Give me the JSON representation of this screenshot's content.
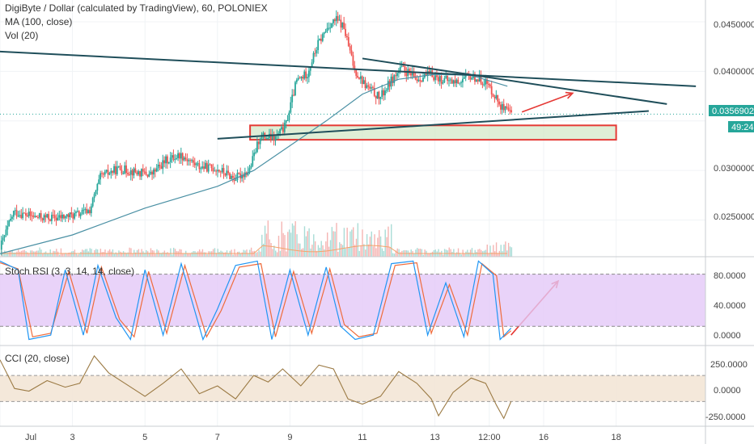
{
  "header": {
    "title": "DigiByte / Dollar (calculated by TradingView), 60, POLONIEX",
    "ma_label": "MA (100, close)",
    "vol_label": "Vol (20)"
  },
  "price_axis": {
    "ticks": [
      "0.04500000",
      "0.04000000",
      "0.03000000",
      "0.02500000"
    ],
    "last_price": "0.03569025",
    "countdown": "49:24"
  },
  "stoch": {
    "label": "Stoch RSI (3, 3, 14, 14, close)",
    "ticks": [
      "80.0000",
      "40.0000",
      "0.0000"
    ]
  },
  "cci": {
    "label": "CCI (20, close)",
    "ticks": [
      "250.0000",
      "0.0000",
      "-250.0000"
    ]
  },
  "time_axis": [
    "Jul",
    "3",
    "5",
    "7",
    "9",
    "11",
    "13",
    "12:00",
    "16",
    "18"
  ],
  "colors": {
    "up": "#26a69a",
    "down": "#ef5350",
    "ma": "#4a90a4",
    "stoch_k": "#2196f3",
    "stoch_d": "#ef6c3c",
    "stoch_band": "#e3c8f7",
    "cci_line": "#9b7a44",
    "cci_band": "#f3e6d6",
    "trendline": "#1f4e5a",
    "zone_fill": "#d4e8c8",
    "zone_border": "#e53935",
    "arrow": "#e53935",
    "price_tag": "#26a69a"
  },
  "chart_data": {
    "type": "candlestick",
    "symbol": "DigiByte / Dollar",
    "interval": "60",
    "exchange": "POLONIEX",
    "price_range": [
      0.0213,
      0.0472
    ],
    "trend": [
      {
        "day": 0.0,
        "price": 0.022
      },
      {
        "day": 0.4,
        "price": 0.0258
      },
      {
        "day": 1.0,
        "price": 0.0253
      },
      {
        "day": 1.6,
        "price": 0.0252
      },
      {
        "day": 2.2,
        "price": 0.0256
      },
      {
        "day": 2.5,
        "price": 0.026
      },
      {
        "day": 2.8,
        "price": 0.0294
      },
      {
        "day": 3.3,
        "price": 0.0302
      },
      {
        "day": 3.8,
        "price": 0.0298
      },
      {
        "day": 4.2,
        "price": 0.0296
      },
      {
        "day": 4.6,
        "price": 0.031
      },
      {
        "day": 5.0,
        "price": 0.0316
      },
      {
        "day": 5.5,
        "price": 0.0304
      },
      {
        "day": 6.0,
        "price": 0.0302
      },
      {
        "day": 6.5,
        "price": 0.0292
      },
      {
        "day": 6.9,
        "price": 0.03
      },
      {
        "day": 7.2,
        "price": 0.0335
      },
      {
        "day": 7.6,
        "price": 0.0332
      },
      {
        "day": 7.9,
        "price": 0.0345
      },
      {
        "day": 8.2,
        "price": 0.039
      },
      {
        "day": 8.5,
        "price": 0.0398
      },
      {
        "day": 8.8,
        "price": 0.0428
      },
      {
        "day": 9.1,
        "price": 0.0447
      },
      {
        "day": 9.3,
        "price": 0.0452
      },
      {
        "day": 9.5,
        "price": 0.0445
      },
      {
        "day": 9.8,
        "price": 0.0402
      },
      {
        "day": 10.1,
        "price": 0.0386
      },
      {
        "day": 10.5,
        "price": 0.0373
      },
      {
        "day": 10.8,
        "price": 0.039
      },
      {
        "day": 11.1,
        "price": 0.0403
      },
      {
        "day": 11.5,
        "price": 0.0392
      },
      {
        "day": 11.9,
        "price": 0.0397
      },
      {
        "day": 12.2,
        "price": 0.0392
      },
      {
        "day": 12.6,
        "price": 0.0389
      },
      {
        "day": 13.0,
        "price": 0.0395
      },
      {
        "day": 13.4,
        "price": 0.039
      },
      {
        "day": 13.6,
        "price": 0.038
      },
      {
        "day": 13.9,
        "price": 0.0362
      },
      {
        "day": 14.1,
        "price": 0.0357
      }
    ],
    "ma": [
      {
        "day": 0.0,
        "price": 0.0216
      },
      {
        "day": 2.0,
        "price": 0.0235
      },
      {
        "day": 4.0,
        "price": 0.0262
      },
      {
        "day": 6.0,
        "price": 0.0284
      },
      {
        "day": 7.0,
        "price": 0.03
      },
      {
        "day": 8.0,
        "price": 0.0325
      },
      {
        "day": 9.0,
        "price": 0.035
      },
      {
        "day": 10.0,
        "price": 0.0377
      },
      {
        "day": 11.0,
        "price": 0.0392
      },
      {
        "day": 12.0,
        "price": 0.0397
      },
      {
        "day": 13.0,
        "price": 0.0396
      },
      {
        "day": 14.0,
        "price": 0.0385
      }
    ],
    "zone": {
      "from_day": 6.9,
      "to_day": 17.0,
      "top": 0.03455,
      "bottom": 0.0331
    },
    "trendlines": [
      {
        "x1": 0.0,
        "y1": 0.042,
        "x2": 19.2,
        "y2": 0.0385
      },
      {
        "x1": 10.0,
        "y1": 0.0413,
        "x2": 18.4,
        "y2": 0.0367
      },
      {
        "x1": 6.0,
        "y1": 0.0332,
        "x2": 17.9,
        "y2": 0.036
      }
    ],
    "arrows": [
      {
        "panel": "price",
        "x1": 14.4,
        "y1": 0.0359,
        "x2": 15.8,
        "y2": 0.0378
      },
      {
        "panel": "stoch",
        "x1": 14.1,
        "y1": 10,
        "x2": 15.4,
        "y2": 72
      }
    ],
    "stoch_rsi": {
      "range": [
        -2,
        100
      ],
      "bands": [
        20,
        80
      ],
      "k": [
        {
          "day": 0.0,
          "v": 95
        },
        {
          "day": 0.5,
          "v": 85
        },
        {
          "day": 0.8,
          "v": 5
        },
        {
          "day": 1.4,
          "v": 10
        },
        {
          "day": 1.8,
          "v": 85
        },
        {
          "day": 2.3,
          "v": 10
        },
        {
          "day": 2.7,
          "v": 90
        },
        {
          "day": 3.2,
          "v": 30
        },
        {
          "day": 3.6,
          "v": 5
        },
        {
          "day": 4.0,
          "v": 85
        },
        {
          "day": 4.5,
          "v": 10
        },
        {
          "day": 5.0,
          "v": 92
        },
        {
          "day": 5.6,
          "v": 5
        },
        {
          "day": 6.0,
          "v": 40
        },
        {
          "day": 6.5,
          "v": 90
        },
        {
          "day": 7.1,
          "v": 95
        },
        {
          "day": 7.5,
          "v": 5
        },
        {
          "day": 8.0,
          "v": 85
        },
        {
          "day": 8.5,
          "v": 10
        },
        {
          "day": 9.0,
          "v": 88
        },
        {
          "day": 9.4,
          "v": 20
        },
        {
          "day": 9.8,
          "v": 5
        },
        {
          "day": 10.3,
          "v": 10
        },
        {
          "day": 10.8,
          "v": 92
        },
        {
          "day": 11.4,
          "v": 95
        },
        {
          "day": 11.8,
          "v": 10
        },
        {
          "day": 12.3,
          "v": 70
        },
        {
          "day": 12.8,
          "v": 8
        },
        {
          "day": 13.2,
          "v": 95
        },
        {
          "day": 13.6,
          "v": 80
        },
        {
          "day": 13.8,
          "v": 5
        },
        {
          "day": 14.1,
          "v": 18
        }
      ],
      "d": [
        {
          "day": 0.0,
          "v": 93
        },
        {
          "day": 0.5,
          "v": 86
        },
        {
          "day": 0.9,
          "v": 8
        },
        {
          "day": 1.4,
          "v": 12
        },
        {
          "day": 1.9,
          "v": 83
        },
        {
          "day": 2.4,
          "v": 12
        },
        {
          "day": 2.8,
          "v": 88
        },
        {
          "day": 3.3,
          "v": 28
        },
        {
          "day": 3.7,
          "v": 8
        },
        {
          "day": 4.1,
          "v": 83
        },
        {
          "day": 4.6,
          "v": 12
        },
        {
          "day": 5.1,
          "v": 90
        },
        {
          "day": 5.7,
          "v": 8
        },
        {
          "day": 6.1,
          "v": 38
        },
        {
          "day": 6.6,
          "v": 88
        },
        {
          "day": 7.2,
          "v": 92
        },
        {
          "day": 7.6,
          "v": 8
        },
        {
          "day": 8.1,
          "v": 83
        },
        {
          "day": 8.6,
          "v": 12
        },
        {
          "day": 9.1,
          "v": 86
        },
        {
          "day": 9.5,
          "v": 22
        },
        {
          "day": 9.9,
          "v": 8
        },
        {
          "day": 10.4,
          "v": 12
        },
        {
          "day": 10.9,
          "v": 90
        },
        {
          "day": 11.5,
          "v": 93
        },
        {
          "day": 11.9,
          "v": 12
        },
        {
          "day": 12.4,
          "v": 68
        },
        {
          "day": 12.9,
          "v": 10
        },
        {
          "day": 13.3,
          "v": 92
        },
        {
          "day": 13.7,
          "v": 78
        },
        {
          "day": 13.9,
          "v": 8
        },
        {
          "day": 14.1,
          "v": 15
        }
      ]
    },
    "cci": {
      "range": [
        -290,
        330
      ],
      "bands": [
        -100,
        100
      ],
      "line": [
        {
          "day": 0.0,
          "v": 220
        },
        {
          "day": 0.4,
          "v": 0
        },
        {
          "day": 0.8,
          "v": -20
        },
        {
          "day": 1.3,
          "v": 60
        },
        {
          "day": 1.8,
          "v": 10
        },
        {
          "day": 2.2,
          "v": 40
        },
        {
          "day": 2.6,
          "v": 250
        },
        {
          "day": 3.0,
          "v": 120
        },
        {
          "day": 3.5,
          "v": 30
        },
        {
          "day": 4.0,
          "v": -60
        },
        {
          "day": 4.5,
          "v": 40
        },
        {
          "day": 5.0,
          "v": 150
        },
        {
          "day": 5.5,
          "v": -40
        },
        {
          "day": 6.0,
          "v": 20
        },
        {
          "day": 6.5,
          "v": -80
        },
        {
          "day": 7.0,
          "v": 100
        },
        {
          "day": 7.4,
          "v": 50
        },
        {
          "day": 7.8,
          "v": 150
        },
        {
          "day": 8.3,
          "v": 20
        },
        {
          "day": 8.8,
          "v": 180
        },
        {
          "day": 9.2,
          "v": 150
        },
        {
          "day": 9.6,
          "v": -80
        },
        {
          "day": 10.0,
          "v": -120
        },
        {
          "day": 10.5,
          "v": -60
        },
        {
          "day": 11.0,
          "v": 130
        },
        {
          "day": 11.5,
          "v": 40
        },
        {
          "day": 11.9,
          "v": -80
        },
        {
          "day": 12.1,
          "v": -210
        },
        {
          "day": 12.5,
          "v": -30
        },
        {
          "day": 13.0,
          "v": 80
        },
        {
          "day": 13.4,
          "v": 40
        },
        {
          "day": 13.7,
          "v": -130
        },
        {
          "day": 13.9,
          "v": -230
        },
        {
          "day": 14.1,
          "v": -100
        }
      ]
    },
    "x_ticks": [
      {
        "day": 0.0,
        "label": "Jul"
      },
      {
        "day": 2.0,
        "label": "3"
      },
      {
        "day": 4.0,
        "label": "5"
      },
      {
        "day": 6.0,
        "label": "7"
      },
      {
        "day": 8.0,
        "label": "9"
      },
      {
        "day": 10.0,
        "label": "11"
      },
      {
        "day": 12.0,
        "label": "13"
      },
      {
        "day": 13.5,
        "label": "12:00"
      },
      {
        "day": 15.0,
        "label": "16"
      },
      {
        "day": 17.0,
        "label": "18"
      }
    ]
  }
}
